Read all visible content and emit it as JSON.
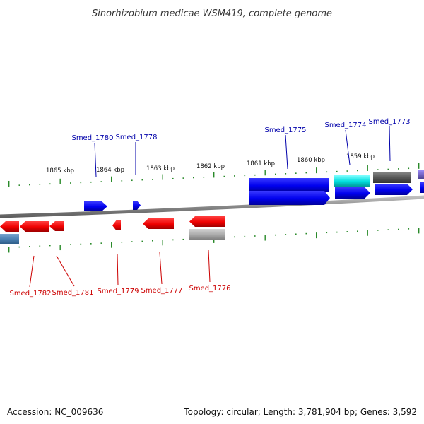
{
  "title": "Sinorhizobium medicae WSM419, complete genome",
  "footer": {
    "accession": "Accession: NC_009636",
    "stats": "Topology: circular; Length: 3,781,904 bp; Genes: 3,592"
  },
  "colors": {
    "forward_gene": "#0000ee",
    "reverse_gene": "#ee0000",
    "cyan_feature": "#00dddd",
    "dark_feature": "#555555",
    "steelblue_feature": "#4a7fb0",
    "lightgray_feature": "#aaaaaa",
    "purple_feature": "#7060c0",
    "tick": "#2a8a2a",
    "backbone": "#888888",
    "forward_label": "#0000aa",
    "reverse_label": "#cc0000"
  },
  "position_labels": [
    "1865 kbp",
    "1864 kbp",
    "1863 kbp",
    "1862 kbp",
    "1861 kbp",
    "1860 kbp",
    "1859 kbp"
  ],
  "forward_gene_labels": [
    "Smed_1780",
    "Smed_1778",
    "Smed_1775",
    "Smed_1774",
    "Smed_1773"
  ],
  "reverse_gene_labels": [
    "Smed_1782",
    "Smed_1781",
    "Smed_1779",
    "Smed_1777",
    "Smed_1776"
  ]
}
